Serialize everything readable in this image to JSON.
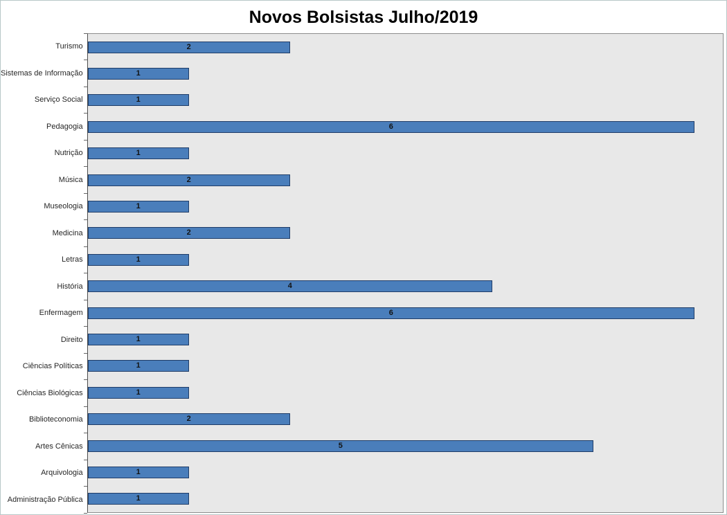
{
  "chart_data": {
    "type": "bar",
    "orientation": "horizontal",
    "title": "Novos Bolsistas Julho/2019",
    "categories": [
      "Turismo",
      "Sistemas de Informação",
      "Serviço Social",
      "Pedagogia",
      "Nutrição",
      "Música",
      "Museologia",
      "Medicina",
      "Letras",
      "História",
      "Enfermagem",
      "Direito",
      "Ciências Políticas",
      "Ciências Biológicas",
      "Biblioteconomia",
      "Artes Cênicas",
      "Arquivologia",
      "Administração Pública"
    ],
    "values": [
      2,
      1,
      1,
      6,
      1,
      2,
      1,
      2,
      1,
      4,
      6,
      1,
      1,
      1,
      2,
      5,
      1,
      1
    ],
    "xlabel": "",
    "ylabel": "",
    "xlim": [
      0,
      6.28
    ],
    "grid": false,
    "legend": "none",
    "data_labels": "inside-center",
    "colors": {
      "bar_fill": "#4a7ebb",
      "bar_border": "#1f3c67",
      "plot_bg": "#e8e8e8"
    }
  }
}
